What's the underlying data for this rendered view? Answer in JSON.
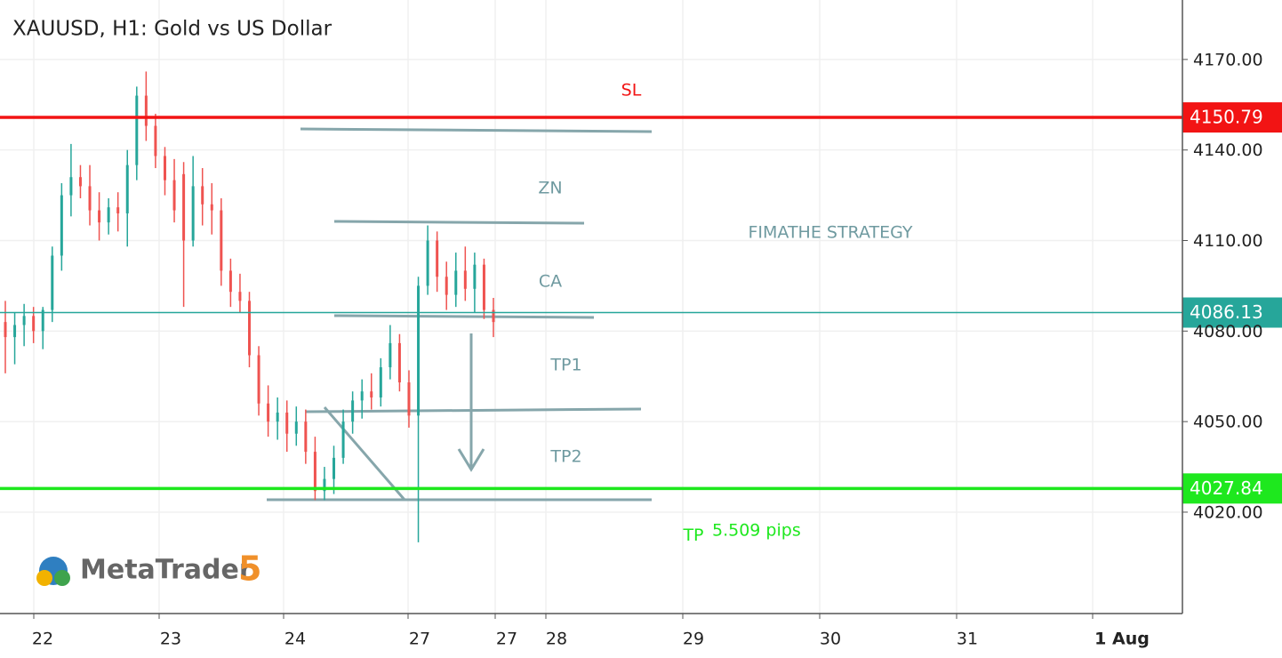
{
  "chart_data": {
    "type": "candlestick",
    "title": "XAUUSD, H1: Gold vs US Dollar",
    "ylim": [
      3986.4,
      4189.7
    ],
    "yticks": [
      {
        "value": 4020,
        "label": "4020.00"
      },
      {
        "value": 4050,
        "label": "4050.00"
      },
      {
        "value": 4080,
        "label": "4080.00"
      },
      {
        "value": 4110,
        "label": "4110.00"
      },
      {
        "value": 4140,
        "label": "4140.00"
      },
      {
        "value": 4170,
        "label": "4170.00"
      }
    ],
    "xtick_labels": [
      "22",
      "23",
      "24",
      "27",
      "27",
      "28",
      "29",
      "30",
      "31",
      "1 Aug"
    ],
    "grid": true,
    "up_color": "#26a69a",
    "down_color": "#ef5350",
    "open": [
      4083,
      4078,
      4082,
      4085,
      4080,
      4087,
      4105,
      4125,
      4131,
      4128,
      4120,
      4116,
      4121,
      4119,
      4135,
      4158,
      4148,
      4138,
      4130,
      4132,
      4110,
      4128,
      4122,
      4120,
      4100,
      4093,
      4090,
      4072,
      4056,
      4050,
      4053,
      4046,
      4050,
      4040,
      4027,
      4031,
      4038,
      4050,
      4057,
      4060,
      4058,
      4068,
      4076,
      4063,
      4052,
      4095,
      4110,
      4098,
      4092,
      4100,
      4094,
      4102,
      4087
    ],
    "high": [
      4090,
      4086,
      4089,
      4088,
      4088,
      4108,
      4129,
      4142,
      4135,
      4135,
      4126,
      4124,
      4126,
      4140,
      4161,
      4166,
      4152,
      4141,
      4137,
      4136,
      4138,
      4134,
      4129,
      4124,
      4104,
      4099,
      4093,
      4075,
      4062,
      4058,
      4057,
      4055,
      4054,
      4045,
      4035,
      4042,
      4054,
      4060,
      4064,
      4066,
      4071,
      4082,
      4079,
      4067,
      4098,
      4115,
      4113,
      4103,
      4106,
      4108,
      4106,
      4104,
      4091
    ],
    "low": [
      4066,
      4069,
      4075,
      4076,
      4074,
      4083,
      4100,
      4118,
      4124,
      4115,
      4110,
      4112,
      4113,
      4108,
      4130,
      4143,
      4134,
      4125,
      4116,
      4088,
      4108,
      4115,
      4112,
      4095,
      4088,
      4086,
      4068,
      4052,
      4045,
      4044,
      4040,
      4042,
      4036,
      4024,
      4024,
      4026,
      4036,
      4046,
      4051,
      4054,
      4055,
      4064,
      4060,
      4048,
      4010,
      4092,
      4093,
      4087,
      4088,
      4090,
      4086,
      4084,
      4078
    ],
    "close": [
      4078,
      4082,
      4085,
      4080,
      4087,
      4105,
      4125,
      4131,
      4128,
      4120,
      4116,
      4121,
      4119,
      4135,
      4158,
      4148,
      4138,
      4130,
      4120,
      4110,
      4128,
      4122,
      4120,
      4100,
      4093,
      4090,
      4072,
      4056,
      4050,
      4053,
      4046,
      4050,
      4040,
      4027,
      4031,
      4038,
      4050,
      4057,
      4060,
      4058,
      4068,
      4076,
      4063,
      4052,
      4095,
      4110,
      4098,
      4092,
      4100,
      4094,
      4102,
      4087,
      4083
    ],
    "price_lines": [
      {
        "name": "SL",
        "value": 4150.79,
        "color": "#f21414"
      },
      {
        "value": 4086.13,
        "color": "#26a69a"
      },
      {
        "name": "TP",
        "value": 4027.84,
        "color": "#1ee81e"
      }
    ],
    "annotations": [
      "ZN",
      "CA",
      "TP1",
      "TP2",
      "FIMATHE STRATEGY",
      "5.509 pips"
    ],
    "logo": {
      "name": "MetaTrader",
      "version": "5"
    }
  }
}
